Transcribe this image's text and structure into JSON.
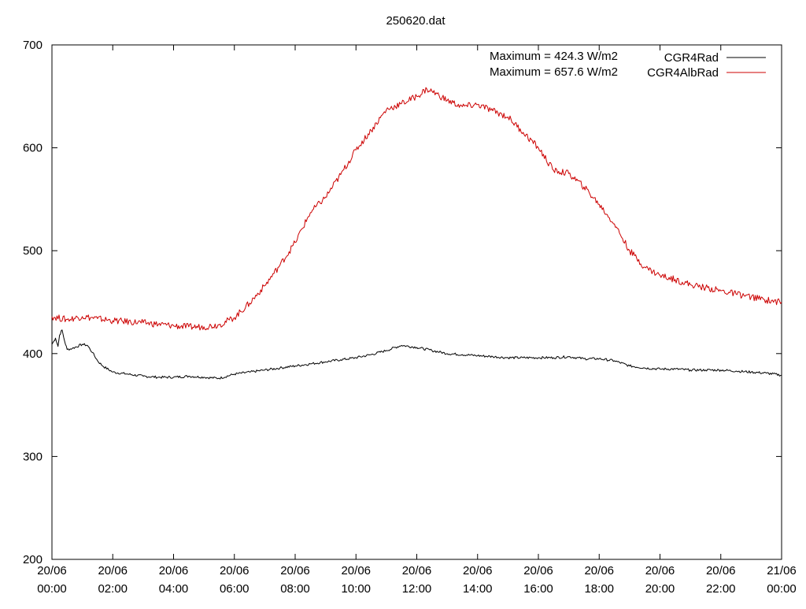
{
  "chart_data": {
    "type": "line",
    "title": "250620.dat",
    "xlabel": "",
    "ylabel": "",
    "grid": false,
    "legend_position": "top-right",
    "x_range": [
      "2025-06-20T00:00",
      "2025-06-21T00:00"
    ],
    "ylim": [
      200,
      700
    ],
    "y_ticks": [
      "200",
      "300",
      "400",
      "500",
      "600",
      "700"
    ],
    "x_ticks": [
      {
        "date": "20/06",
        "time": "00:00"
      },
      {
        "date": "20/06",
        "time": "02:00"
      },
      {
        "date": "20/06",
        "time": "04:00"
      },
      {
        "date": "20/06",
        "time": "06:00"
      },
      {
        "date": "20/06",
        "time": "08:00"
      },
      {
        "date": "20/06",
        "time": "10:00"
      },
      {
        "date": "20/06",
        "time": "12:00"
      },
      {
        "date": "20/06",
        "time": "14:00"
      },
      {
        "date": "20/06",
        "time": "16:00"
      },
      {
        "date": "20/06",
        "time": "18:00"
      },
      {
        "date": "20/06",
        "time": "20:00"
      },
      {
        "date": "20/06",
        "time": "22:00"
      },
      {
        "date": "21/06",
        "time": "00:00"
      }
    ],
    "annotations": [
      "Maximum = 424.3 W/m2",
      "Maximum = 657.6 W/m2"
    ],
    "series": [
      {
        "name": "CGR4Rad",
        "color": "#000000",
        "x": [
          "00:00",
          "00:07",
          "00:12",
          "00:15",
          "00:20",
          "00:25",
          "00:30",
          "00:40",
          "01:00",
          "01:10",
          "01:20",
          "01:30",
          "01:40",
          "02:00",
          "02:30",
          "03:00",
          "03:30",
          "04:00",
          "04:30",
          "05:00",
          "05:30",
          "06:00",
          "06:30",
          "07:00",
          "07:30",
          "08:00",
          "08:30",
          "09:00",
          "09:30",
          "10:00",
          "10:30",
          "11:00",
          "11:30",
          "12:00",
          "12:30",
          "13:00",
          "13:30",
          "14:00",
          "14:30",
          "15:00",
          "15:30",
          "16:00",
          "16:30",
          "17:00",
          "17:30",
          "18:00",
          "18:30",
          "19:00",
          "19:30",
          "20:00",
          "20:30",
          "21:00",
          "21:30",
          "22:00",
          "22:30",
          "23:00",
          "23:30",
          "24:00"
        ],
        "values": [
          409,
          415,
          407,
          418,
          423,
          412,
          404,
          405,
          409,
          408,
          401,
          393,
          388,
          382,
          380,
          378,
          377,
          377,
          378,
          377,
          376,
          380,
          382,
          384,
          386,
          388,
          390,
          392,
          394,
          396,
          399,
          403,
          408,
          406,
          403,
          400,
          399,
          398,
          397,
          396,
          396,
          396,
          396,
          397,
          395,
          395,
          393,
          388,
          386,
          385,
          385,
          384,
          384,
          384,
          383,
          382,
          381,
          379
        ]
      },
      {
        "name": "CGR4AlbRad",
        "color": "#cc0000",
        "x": [
          "00:00",
          "00:30",
          "01:00",
          "01:30",
          "02:00",
          "03:00",
          "04:00",
          "04:30",
          "05:00",
          "05:30",
          "06:00",
          "06:30",
          "07:00",
          "07:30",
          "08:00",
          "08:30",
          "09:00",
          "09:30",
          "10:00",
          "10:30",
          "11:00",
          "11:30",
          "12:00",
          "12:20",
          "12:30",
          "13:00",
          "13:30",
          "14:00",
          "14:30",
          "15:00",
          "15:30",
          "16:00",
          "16:30",
          "17:00",
          "17:30",
          "18:00",
          "18:30",
          "19:00",
          "19:30",
          "20:00",
          "20:30",
          "21:00",
          "21:30",
          "22:00",
          "22:30",
          "23:00",
          "23:30",
          "24:00"
        ],
        "values": [
          436,
          433,
          436,
          434,
          432,
          430,
          427,
          426,
          426,
          428,
          435,
          449,
          466,
          486,
          508,
          537,
          552,
          574,
          598,
          617,
          637,
          643,
          650,
          657,
          655,
          646,
          640,
          642,
          636,
          630,
          615,
          600,
          578,
          575,
          562,
          545,
          526,
          500,
          484,
          476,
          472,
          467,
          464,
          461,
          458,
          455,
          452,
          450
        ]
      }
    ]
  }
}
